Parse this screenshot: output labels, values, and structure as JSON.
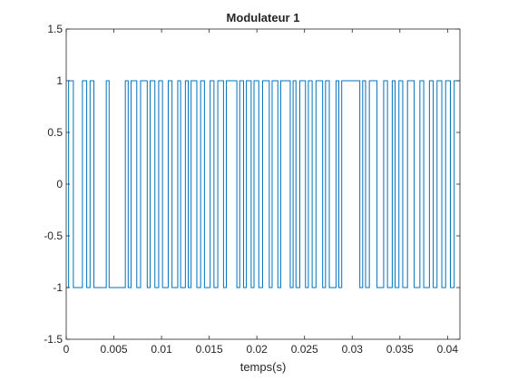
{
  "chart_data": {
    "type": "line",
    "title": "Modulateur 1",
    "xlabel": "temps(s)",
    "ylabel": "",
    "xlim": [
      0,
      0.0413
    ],
    "ylim": [
      -1.5,
      1.5
    ],
    "x_ticks": [
      0,
      0.005,
      0.01,
      0.015,
      0.02,
      0.025,
      0.03,
      0.035,
      0.04
    ],
    "x_tick_labels": [
      "0",
      "0.005",
      "0.01",
      "0.015",
      "0.02",
      "0.025",
      "0.03",
      "0.035",
      "0.04"
    ],
    "y_ticks": [
      -1.5,
      -1,
      -0.5,
      0,
      0.5,
      1,
      1.5
    ],
    "y_tick_labels": [
      "-1.5",
      "-1",
      "-0.5",
      "0",
      "0.5",
      "1",
      "1.5"
    ],
    "grid": false,
    "line_color": "#0072BD",
    "series": [
      {
        "transitions_x": [
          0.00025,
          0.00075,
          0.0017,
          0.00215,
          0.0025,
          0.0029,
          0.0042,
          0.0045,
          0.0062,
          0.0065,
          0.0068,
          0.0074,
          0.0078,
          0.0085,
          0.0088,
          0.0093,
          0.0097,
          0.0101,
          0.0107,
          0.0111,
          0.0117,
          0.012,
          0.0125,
          0.0128,
          0.0131,
          0.0137,
          0.0141,
          0.0145,
          0.0151,
          0.0155,
          0.0159,
          0.0165,
          0.0168,
          0.0179,
          0.0182,
          0.0186,
          0.0189,
          0.0194,
          0.0197,
          0.0202,
          0.0206,
          0.0213,
          0.0216,
          0.0222,
          0.0225,
          0.0235,
          0.0238,
          0.0241,
          0.0245,
          0.0251,
          0.0254,
          0.0258,
          0.0262,
          0.0269,
          0.0272,
          0.0276,
          0.0283,
          0.0286,
          0.0289,
          0.0308,
          0.0311,
          0.0314,
          0.0318,
          0.0326,
          0.0333,
          0.0337,
          0.0342,
          0.0345,
          0.0349,
          0.0353,
          0.0358,
          0.0365,
          0.0371,
          0.0375,
          0.0381,
          0.0385,
          0.0389,
          0.0394,
          0.0398,
          0.0403,
          0.0407
        ],
        "start_level": -1,
        "levels": [
          -1,
          1
        ]
      }
    ]
  }
}
